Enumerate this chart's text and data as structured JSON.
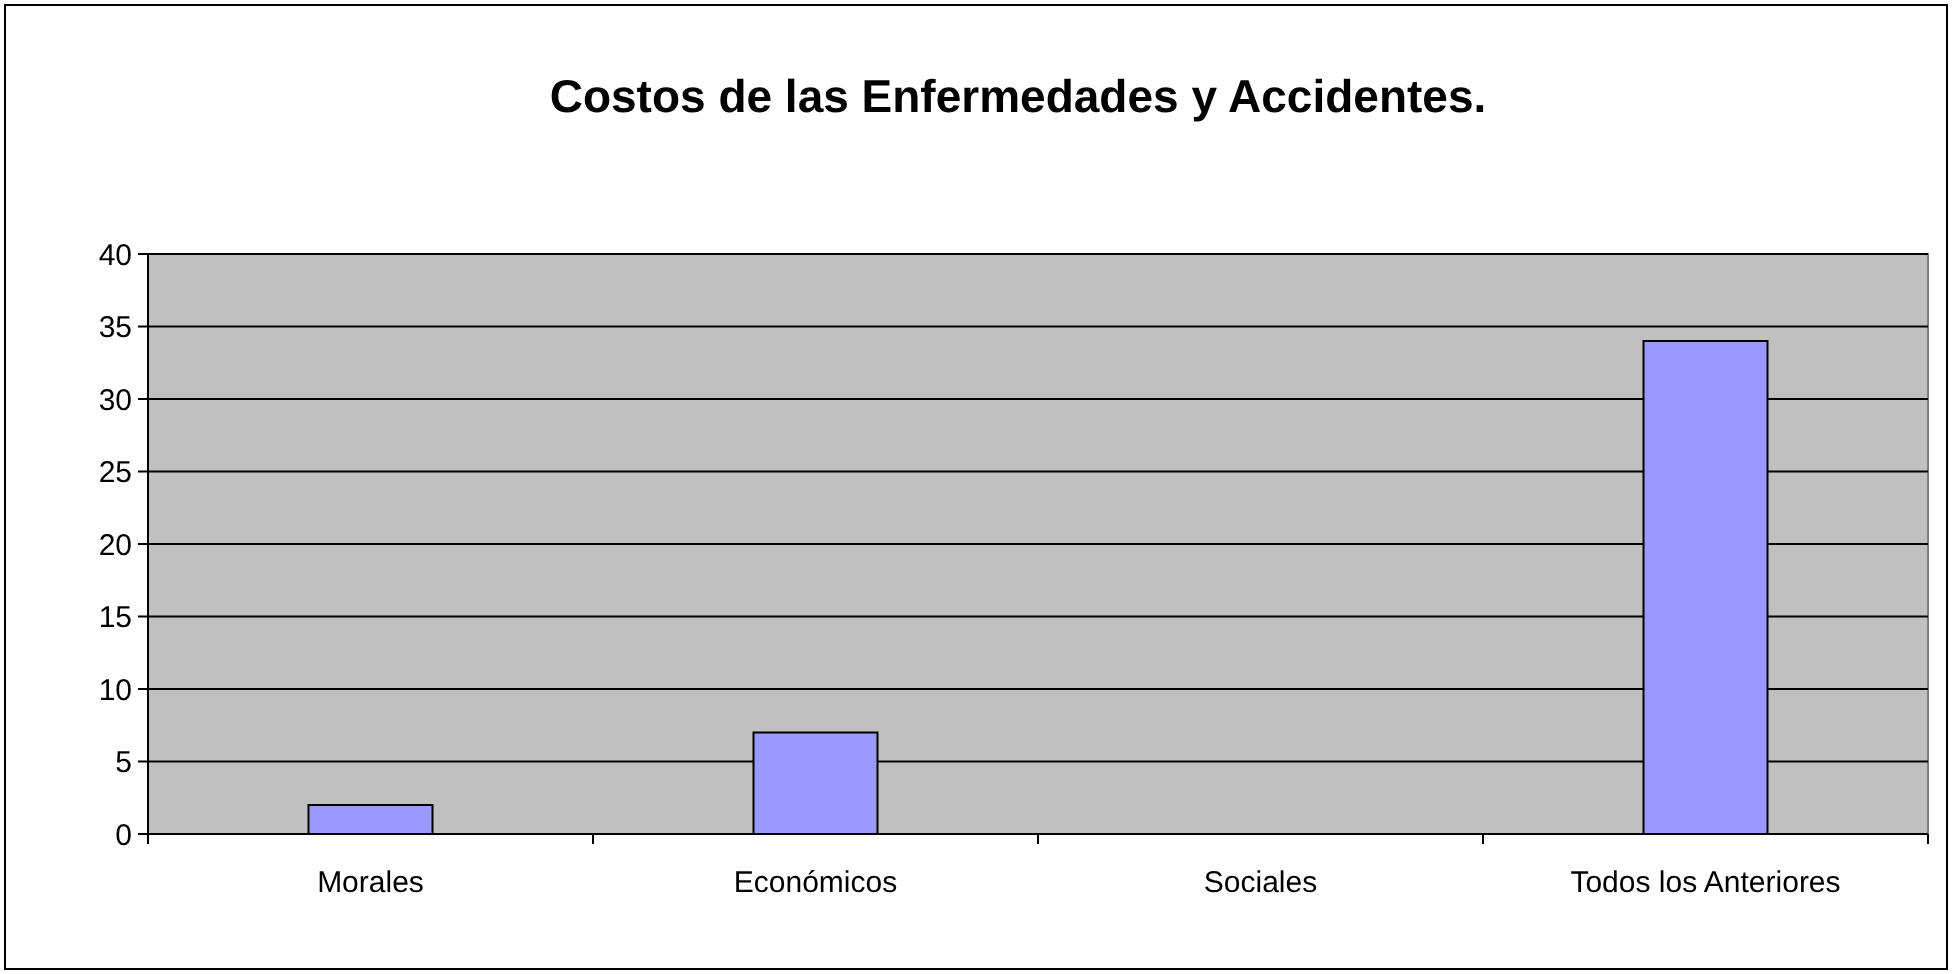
{
  "chart_data": {
    "type": "bar",
    "title": "Costos de las Enfermedades y Accidentes.",
    "categories": [
      "Morales",
      "Económicos",
      "Sociales",
      "Todos los Anteriores"
    ],
    "values": [
      2,
      7,
      0,
      34
    ],
    "color": "#9999ff",
    "ylim": [
      0,
      40
    ],
    "yticks": [
      0,
      5,
      10,
      15,
      20,
      25,
      30,
      35,
      40
    ],
    "grid": "y"
  }
}
